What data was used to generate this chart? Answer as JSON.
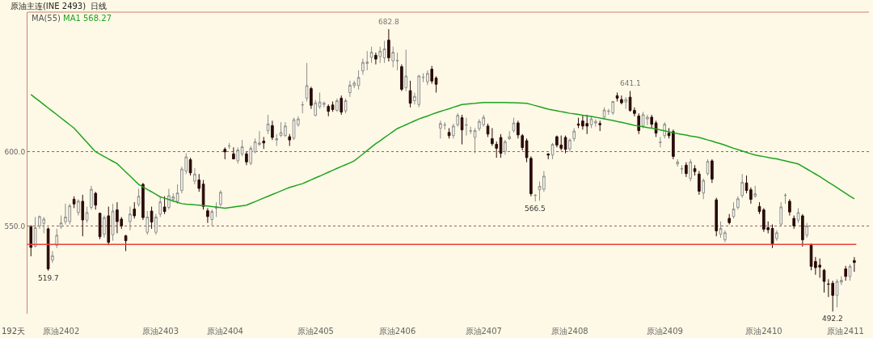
{
  "chart_data": {
    "type": "candlestick",
    "title": "原油主连(INE 2493)  日线",
    "categories": [
      null,
      null,
      null,
      null,
      null,
      null,
      null,
      "原油2402",
      null,
      null,
      null,
      null,
      null,
      null,
      null,
      null,
      null,
      null,
      null,
      null,
      null,
      null,
      null,
      null,
      null,
      null,
      null,
      null,
      null,
      null,
      "原油2403",
      null,
      null,
      null,
      null,
      null,
      null,
      null,
      null,
      null,
      null,
      null,
      null,
      null,
      null,
      "原油2404",
      null,
      null,
      null,
      null,
      null,
      null,
      null,
      null,
      null,
      null,
      null,
      null,
      null,
      null,
      null,
      null,
      null,
      null,
      null,
      null,
      "原油2405",
      null,
      null,
      null,
      null,
      null,
      null,
      null,
      null,
      null,
      null,
      null,
      null,
      null,
      null,
      null,
      null,
      null,
      null,
      "原油2406",
      null,
      null,
      null,
      null,
      null,
      null,
      null,
      null,
      null,
      null,
      null,
      null,
      null,
      null,
      null,
      null,
      null,
      null,
      null,
      "原油2407",
      null,
      null,
      null,
      null,
      null,
      null,
      null,
      null,
      null,
      null,
      null,
      null,
      null,
      null,
      null,
      null,
      null,
      null,
      null,
      "原油2408",
      null,
      null,
      null,
      null,
      null,
      null,
      null,
      null,
      null,
      null,
      null,
      null,
      null,
      null,
      null,
      null,
      null,
      null,
      null,
      null,
      null,
      "原油2409",
      null,
      null,
      null,
      null,
      null,
      null,
      null,
      null,
      null,
      null,
      null,
      null,
      null,
      null,
      null,
      null,
      null,
      null,
      null,
      null,
      null,
      null,
      "原油2410",
      null,
      null,
      null,
      null,
      null,
      null,
      null,
      null,
      null,
      null,
      null,
      null,
      null,
      null,
      null,
      null,
      null,
      null,
      "原油2411",
      null,
      null
    ],
    "ohlc": [
      [
        549.5,
        550.5,
        529.5,
        535.5
      ],
      [
        536.3,
        556,
        535.5,
        548.8
      ],
      [
        550,
        557,
        548,
        556.3
      ],
      [
        551.7,
        556,
        545,
        554.6
      ],
      [
        548,
        549,
        519.7,
        521
      ],
      [
        527,
        533,
        525,
        529.9
      ],
      [
        536.9,
        548,
        535,
        543.7
      ],
      [
        549.5,
        557,
        548,
        552
      ],
      [
        552.9,
        565,
        551,
        556
      ],
      [
        552.9,
        565,
        551,
        563.5
      ],
      [
        568,
        570,
        562,
        564.8
      ],
      [
        559,
        568,
        557,
        566.7
      ],
      [
        566.6,
        571,
        543,
        554
      ],
      [
        553.9,
        563,
        552,
        559
      ],
      [
        562.5,
        577,
        561,
        574.7
      ],
      [
        572,
        573,
        561,
        564
      ],
      [
        558.5,
        559,
        541,
        542.7
      ],
      [
        544.4,
        557,
        542,
        555.6
      ],
      [
        556.8,
        563,
        537,
        538.9
      ],
      [
        544,
        565,
        540,
        560
      ],
      [
        560.8,
        566,
        545,
        552.9
      ],
      [
        554.6,
        556,
        548,
        550
      ],
      [
        543.3,
        544,
        533,
        540
      ],
      [
        552.9,
        563,
        547,
        558
      ],
      [
        561.4,
        566,
        555,
        556.8
      ],
      [
        564.5,
        575,
        563,
        570
      ],
      [
        578,
        579,
        554,
        555.6
      ],
      [
        545.7,
        560,
        544,
        556
      ],
      [
        560,
        563,
        548,
        552.6
      ],
      [
        545.7,
        558,
        544,
        556
      ],
      [
        558,
        570,
        556,
        566.2
      ],
      [
        562.8,
        570,
        558,
        559.7
      ],
      [
        562.5,
        575,
        561,
        570.5
      ],
      [
        568,
        572,
        566,
        569.6
      ],
      [
        566.5,
        578,
        565,
        572.2
      ],
      [
        573.9,
        590,
        572,
        588.4
      ],
      [
        587,
        599,
        585,
        596.6
      ],
      [
        594.7,
        596,
        584,
        585.8
      ],
      [
        580.2,
        589,
        578,
        585
      ],
      [
        581,
        585,
        573,
        575.3
      ],
      [
        578.2,
        581,
        561,
        563.1
      ],
      [
        560.2,
        562,
        552,
        556.3
      ],
      [
        554.3,
        561,
        550,
        559.7
      ],
      [
        562,
        566,
        556,
        562.3
      ],
      [
        564.5,
        574,
        563,
        572.7
      ],
      [
        601.7,
        603,
        595,
        600
      ],
      [
        603.8,
        606,
        602,
        604
      ],
      [
        598.6,
        603,
        595,
        595.2
      ],
      [
        593.9,
        603,
        592,
        601.2
      ],
      [
        598.6,
        608,
        597,
        603.4
      ],
      [
        598.6,
        600,
        591,
        593.2
      ],
      [
        592.3,
        604,
        591,
        602.4
      ],
      [
        600,
        609,
        599,
        606.8
      ],
      [
        605,
        614,
        604,
        606
      ],
      [
        607.2,
        610,
        602,
        606
      ],
      [
        614.3,
        625,
        612,
        618.8
      ],
      [
        617.7,
        621,
        608,
        609.7
      ],
      [
        608,
        612,
        604,
        608.9
      ],
      [
        611,
        620,
        610,
        613
      ],
      [
        611,
        620,
        610,
        617.4
      ],
      [
        610.2,
        612,
        604,
        608
      ],
      [
        609.2,
        623,
        608,
        621.7
      ],
      [
        618.3,
        624,
        617,
        622.2
      ],
      [
        631.6,
        634,
        626,
        631.8
      ],
      [
        636.2,
        660,
        634,
        644.7
      ],
      [
        642.7,
        644,
        629,
        631.4
      ],
      [
        624.6,
        635,
        624,
        633.1
      ],
      [
        630.5,
        640,
        629,
        633.6
      ],
      [
        632,
        634,
        630,
        632.8
      ],
      [
        630.7,
        632,
        624,
        627.3
      ],
      [
        631.6,
        634,
        627,
        628.5
      ],
      [
        628,
        636,
        627,
        634.5
      ],
      [
        636.2,
        638,
        625,
        626.8
      ],
      [
        627.6,
        636,
        626,
        634.5
      ],
      [
        640,
        648,
        637,
        645
      ],
      [
        644.7,
        648,
        643,
        646.4
      ],
      [
        644.7,
        655,
        642,
        650.2
      ],
      [
        654.6,
        663,
        652,
        660.4
      ],
      [
        659.7,
        668,
        655,
        660.6
      ],
      [
        663.8,
        671,
        660,
        667.2
      ],
      [
        665.2,
        667,
        659,
        662.6
      ],
      [
        664.3,
        671,
        660,
        668
      ],
      [
        663.5,
        675,
        660,
        669.5
      ],
      [
        675.4,
        682.8,
        661,
        663.5
      ],
      [
        661.4,
        671,
        657,
        667.2
      ],
      [
        661.4,
        667,
        655,
        661.6
      ],
      [
        657.5,
        659,
        641,
        642.2
      ],
      [
        643.3,
        669,
        641,
        651.2
      ],
      [
        641.3,
        648,
        630,
        632.8
      ],
      [
        634.5,
        640,
        632,
        637.5
      ],
      [
        631.9,
        652,
        630,
        651.2
      ],
      [
        650.2,
        653,
        647,
        650.4
      ],
      [
        647.3,
        655,
        645,
        652.9
      ],
      [
        655.8,
        658,
        646,
        647.8
      ],
      [
        649.8,
        651,
        640,
        645.6
      ],
      [
        616,
        621,
        609,
        619.1
      ],
      [
        618,
        620,
        615,
        618.2
      ],
      [
        613.1,
        616,
        609,
        610.9
      ],
      [
        611,
        619,
        609,
        617.4
      ],
      [
        618.3,
        626,
        617,
        624.6
      ],
      [
        623,
        625,
        605,
        614.8
      ],
      [
        618,
        623,
        611,
        618.2
      ],
      [
        614,
        617,
        612,
        614.2
      ],
      [
        609.7,
        616,
        599,
        614.3
      ],
      [
        615.7,
        622,
        614,
        620.5
      ],
      [
        618.3,
        625,
        617,
        623.2
      ],
      [
        617.4,
        619,
        610,
        612
      ],
      [
        608.9,
        616,
        604,
        605.5
      ],
      [
        605.1,
        607,
        596,
        602.4
      ],
      [
        609.7,
        612,
        596,
        599
      ],
      [
        600.3,
        608,
        598,
        606.8
      ],
      [
        608.9,
        614,
        608,
        610.2
      ],
      [
        614.3,
        623,
        613,
        619.5
      ],
      [
        619.5,
        621,
        609,
        611.4
      ],
      [
        610.9,
        612,
        601,
        602.9
      ],
      [
        607.5,
        609,
        593,
        596.1
      ],
      [
        595.6,
        597,
        570,
        571.7
      ],
      [
        570.5,
        571.5,
        566.5,
        570.7
      ],
      [
        574.4,
        580,
        567,
        576.8
      ],
      [
        574.7,
        587,
        573,
        583.6
      ],
      [
        598.6,
        599,
        595,
        597.8
      ],
      [
        597.8,
        606,
        595,
        605.1
      ],
      [
        610.2,
        611,
        603,
        604.6
      ],
      [
        604.6,
        611,
        601,
        602.4
      ],
      [
        609.7,
        611,
        599,
        601.7
      ],
      [
        602,
        609,
        600,
        608
      ],
      [
        608.9,
        616,
        607,
        614
      ],
      [
        618.8,
        623,
        616,
        618
      ],
      [
        620.8,
        625,
        615,
        617.4
      ],
      [
        619.1,
        625,
        612,
        617.4
      ],
      [
        618.3,
        624,
        616,
        622.2
      ],
      [
        619.5,
        622,
        617,
        620.5
      ],
      [
        619.1,
        621,
        614,
        618.3
      ],
      [
        623.4,
        630,
        622,
        628.2
      ],
      [
        627.3,
        629,
        625,
        627.5
      ],
      [
        626.3,
        634,
        625,
        634
      ],
      [
        637.9,
        640,
        634,
        636.2
      ],
      [
        635.3,
        638,
        632,
        633.1
      ],
      [
        633.6,
        637,
        629,
        635.3
      ],
      [
        636.9,
        641.1,
        627,
        628
      ],
      [
        628,
        630,
        624,
        625.9
      ],
      [
        624.2,
        626,
        612,
        614.3
      ],
      [
        617.4,
        627,
        616,
        625.1
      ],
      [
        622.2,
        625,
        618,
        623.4
      ],
      [
        623.4,
        625,
        616,
        618.6
      ],
      [
        619.5,
        621,
        610,
        612.6
      ],
      [
        606.3,
        610,
        603,
        606.5
      ],
      [
        610.9,
        620,
        609,
        618.6
      ],
      [
        612.6,
        616,
        609,
        610.9
      ],
      [
        613.7,
        615,
        595,
        596.9
      ],
      [
        591.8,
        595,
        590,
        593.2
      ],
      [
        588.4,
        591,
        585,
        588.6
      ],
      [
        591,
        593,
        583,
        585.3
      ],
      [
        582.1,
        595,
        580,
        593.2
      ],
      [
        588.7,
        591,
        584,
        586.7
      ],
      [
        585,
        587,
        571,
        573.4
      ],
      [
        572.2,
        582,
        568,
        580.7
      ],
      [
        585.3,
        595,
        584,
        593.5
      ],
      [
        593.9,
        595,
        579,
        581.6
      ],
      [
        567.6,
        569,
        543,
        546.6
      ],
      [
        544.4,
        553,
        542,
        548.3
      ],
      [
        540.6,
        547,
        539,
        545.4
      ],
      [
        555.1,
        558,
        551,
        552.2
      ],
      [
        556.3,
        566,
        555,
        561.4
      ],
      [
        562.5,
        570,
        561,
        568.3
      ],
      [
        570.5,
        585,
        569,
        579.5
      ],
      [
        579,
        584,
        572,
        573.9
      ],
      [
        574.4,
        576,
        565,
        567.9
      ],
      [
        570,
        577,
        569,
        571.7
      ],
      [
        563.1,
        566,
        558,
        559.7
      ],
      [
        560.8,
        562,
        546,
        547.8
      ],
      [
        548.8,
        553,
        545,
        547.4
      ],
      [
        548.3,
        551,
        535,
        538
      ],
      [
        541.5,
        547,
        540,
        545.4
      ],
      [
        551.2,
        566,
        550,
        562.8
      ],
      [
        570.5,
        572,
        565,
        570.7
      ],
      [
        566.6,
        568,
        557,
        559.4
      ],
      [
        555.1,
        557,
        548,
        550
      ],
      [
        553.9,
        562,
        552,
        559
      ],
      [
        556.8,
        558,
        536,
        540.6
      ],
      [
        543.7,
        552,
        542,
        550
      ],
      [
        537.5,
        538,
        520,
        522.7
      ],
      [
        526,
        529,
        517,
        521.8
      ],
      [
        523.5,
        528,
        515,
        522.2
      ],
      [
        520.1,
        521,
        505,
        512.5
      ],
      [
        510.8,
        514,
        502,
        510.6
      ],
      [
        511.3,
        513,
        492.2,
        503.1
      ],
      [
        503.1,
        514,
        495,
        512.5
      ],
      [
        512,
        516,
        510,
        513.3
      ],
      [
        521,
        523,
        513,
        515.9
      ],
      [
        515.9,
        524,
        513,
        522.7
      ],
      [
        526.6,
        529,
        519,
        525.3
      ]
    ],
    "series": [
      {
        "name": "MA1 568.27",
        "type": "line",
        "color": "#1fa31f",
        "values": [
          638.7,
          636.4,
          634.2,
          631.9,
          629.6,
          627.4,
          625.1,
          622.8,
          620.5,
          618.3,
          616,
          612.8,
          609.6,
          606.4,
          603.2,
          600,
          598.4,
          596.8,
          595.2,
          593.6,
          592,
          589.2,
          586.4,
          583.6,
          580.8,
          578,
          576.3,
          574.6,
          573,
          571.3,
          569.6,
          568.7,
          567.8,
          566.8,
          565.9,
          565,
          564.7,
          564.5,
          564.2,
          564,
          563.7,
          563.4,
          563,
          562.7,
          562.3,
          562,
          562.4,
          562.8,
          563.2,
          563.6,
          564,
          565.2,
          566.4,
          567.6,
          568.8,
          570,
          571.2,
          572.4,
          573.6,
          574.8,
          576,
          576.8,
          577.7,
          578.5,
          579.8,
          581.1,
          582.4,
          583.6,
          584.9,
          586.2,
          587.5,
          588.8,
          590.1,
          591.3,
          592.6,
          593.9,
          596.2,
          598.5,
          600.9,
          603.2,
          605.5,
          607.5,
          609.6,
          611.6,
          613.7,
          615.7,
          617,
          618.3,
          619.6,
          620.9,
          622.2,
          623.2,
          624.2,
          625.3,
          626.3,
          627.3,
          628.2,
          629.1,
          630.1,
          631,
          631.9,
          632.2,
          632.5,
          632.7,
          633,
          633.3,
          633.3,
          633.3,
          633.3,
          633.3,
          633.3,
          633.2,
          633.1,
          633,
          632.9,
          632.8,
          632,
          631.2,
          630.4,
          629.6,
          628.8,
          628.2,
          627.7,
          627.1,
          626.6,
          626,
          625.6,
          625.2,
          624.7,
          624.3,
          623.9,
          623.4,
          622.8,
          622.3,
          621.7,
          621.2,
          620.5,
          619.9,
          619.2,
          618.6,
          617.9,
          617.4,
          616.9,
          616.4,
          615.9,
          615.4,
          614.8,
          614.2,
          613.5,
          612.9,
          612.3,
          611.8,
          611.3,
          610.7,
          610.2,
          609.7,
          608.9,
          608,
          607.2,
          606.3,
          605.5,
          604.5,
          603.4,
          602.4,
          601.5,
          600.6,
          599.6,
          598.7,
          597.8,
          597.3,
          596.8,
          596.2,
          595.7,
          595.2,
          594.5,
          593.9,
          593.2,
          592.5,
          591.8,
          590.1,
          588.4,
          586.7,
          585,
          583.3,
          581.4,
          579.5,
          577.7,
          575.8,
          573.9,
          572,
          570.1,
          568.3
        ]
      }
    ],
    "ylim": [
      490.7,
      694.3
    ],
    "yticks": [
      {
        "value": 600,
        "label": "600.0"
      },
      {
        "value": 550,
        "label": "550.0"
      }
    ],
    "grid": "y",
    "legend": false,
    "ref_lines": [
      {
        "axis": "y",
        "value": 537.5,
        "color": "#e8423c"
      }
    ],
    "annotations": [
      "MA(55)",
      "192天",
      {
        "text": "682.8",
        "y": 682.8
      },
      {
        "text": "641.1",
        "y": 641.1
      },
      {
        "text": "566.5",
        "y": 566.5
      },
      {
        "text": "519.7",
        "y": 519.7
      },
      {
        "text": "492.2",
        "y": 492.2
      }
    ]
  }
}
